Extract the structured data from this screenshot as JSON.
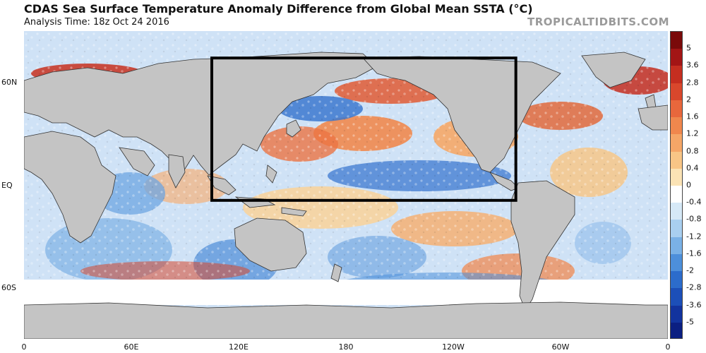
{
  "header": {
    "title": "CDAS Sea Surface Temperature Anomaly Difference from Global Mean SSTA (°C)",
    "analysis_time": "Analysis Time: 18z Oct 24 2016",
    "brand": "TROPICALTIDBITS.COM"
  },
  "map": {
    "lat_labels": [
      "60N",
      "EQ",
      "60S"
    ],
    "lon_labels": [
      "0",
      "60E",
      "120E",
      "180",
      "120W",
      "60W",
      "0"
    ],
    "highlight_box": {
      "west_lon": 105,
      "east_lon": 275,
      "north_lat": 66,
      "south_lat": -8
    }
  },
  "colorbar": {
    "labels": [
      "5",
      "3.6",
      "2.8",
      "2",
      "1.6",
      "1.2",
      "0.8",
      "0.4",
      "0",
      "-0.4",
      "-0.8",
      "-1.2",
      "-1.6",
      "-2",
      "-2.8",
      "-3.6",
      "-5"
    ],
    "colors": [
      "#7a0a0a",
      "#a31515",
      "#c52e20",
      "#d9472c",
      "#e8673c",
      "#f0874d",
      "#f5a667",
      "#f8c586",
      "#fbe3b5",
      "#ffffff",
      "#d6e9f7",
      "#a9cff0",
      "#7ab1e6",
      "#4d8fda",
      "#2c6ccb",
      "#1c4fb8",
      "#12339e",
      "#0b1f82"
    ]
  }
}
